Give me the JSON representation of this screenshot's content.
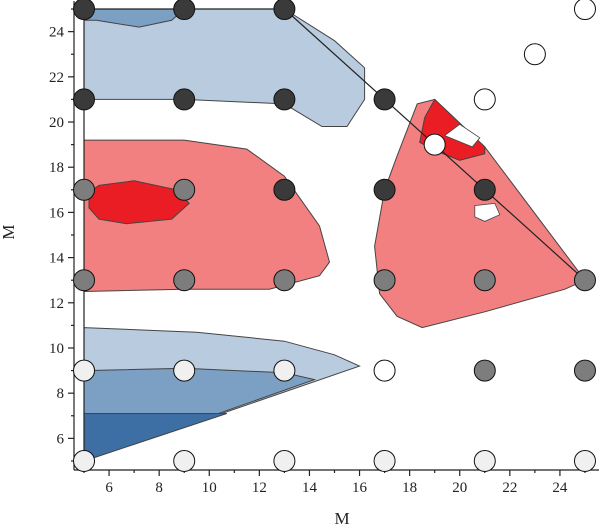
{
  "chart_data": {
    "type": "scatter",
    "title": "",
    "xlabel": "M",
    "ylabel": "M",
    "xlim": [
      4.6,
      25.6
    ],
    "ylim": [
      4.6,
      25.4
    ],
    "xticks": [
      6,
      8,
      10,
      12,
      14,
      16,
      18,
      20,
      22,
      24
    ],
    "yticks": [
      6,
      8,
      10,
      12,
      14,
      16,
      18,
      20,
      22,
      24
    ],
    "grid": false,
    "colors": {
      "light_blue": "#b9cbdf",
      "mid_blue": "#7c9fc4",
      "dark_blue": "#3d6fa4",
      "salmon": "#f28080",
      "red": "#ea1c24",
      "point_dark": "#3a3a3a",
      "point_mid": "#7d7d7d",
      "point_light": "#f0f0f0",
      "point_white": "#ffffff"
    },
    "region_boundary": [
      [
        5,
        5
      ],
      [
        5,
        25
      ],
      [
        13,
        25
      ],
      [
        25,
        13
      ]
    ],
    "contour_regions": [
      {
        "level": "light_blue",
        "points": [
          [
            5,
            25
          ],
          [
            13,
            25
          ],
          [
            15,
            23.6
          ],
          [
            16.2,
            22.4
          ],
          [
            16.2,
            21
          ],
          [
            15.5,
            19.8
          ],
          [
            14.5,
            19.8
          ],
          [
            13,
            20.8
          ],
          [
            9,
            21
          ],
          [
            5,
            21
          ]
        ]
      },
      {
        "level": "mid_blue",
        "points": [
          [
            5,
            25
          ],
          [
            9,
            25
          ],
          [
            8.5,
            24.5
          ],
          [
            7.2,
            24.2
          ],
          [
            5.5,
            24.5
          ],
          [
            5,
            24.5
          ]
        ]
      },
      {
        "level": "salmon",
        "points": [
          [
            5,
            19.2
          ],
          [
            9,
            19.2
          ],
          [
            11.5,
            18.8
          ],
          [
            13,
            17.6
          ],
          [
            14.4,
            15.4
          ],
          [
            14.8,
            13.8
          ],
          [
            14.4,
            13.2
          ],
          [
            12.4,
            12.6
          ],
          [
            9,
            12.6
          ],
          [
            5,
            12.5
          ]
        ]
      },
      {
        "level": "red",
        "points": [
          [
            5.2,
            16.9
          ],
          [
            5.6,
            17.2
          ],
          [
            7,
            17.4
          ],
          [
            8.7,
            17
          ],
          [
            9.2,
            16.4
          ],
          [
            8.5,
            15.7
          ],
          [
            6.7,
            15.5
          ],
          [
            5.6,
            15.7
          ],
          [
            5.2,
            16.2
          ]
        ]
      },
      {
        "level": "salmon",
        "points": [
          [
            18.3,
            20.8
          ],
          [
            19,
            21
          ],
          [
            21,
            18.9
          ],
          [
            25,
            13
          ],
          [
            24.2,
            12.6
          ],
          [
            21,
            11.6
          ],
          [
            18.5,
            10.9
          ],
          [
            17.5,
            11.4
          ],
          [
            16.8,
            12.4
          ],
          [
            16.6,
            14.5
          ],
          [
            17,
            17
          ],
          [
            17.5,
            18.5
          ]
        ]
      },
      {
        "level": "red",
        "points": [
          [
            18.6,
            20.2
          ],
          [
            19,
            21
          ],
          [
            21,
            18.9
          ],
          [
            21,
            18.6
          ],
          [
            20,
            18.3
          ],
          [
            19.1,
            18.7
          ],
          [
            18.4,
            19.1
          ]
        ]
      },
      {
        "level": "light_blue",
        "points": [
          [
            5,
            10.9
          ],
          [
            9.5,
            10.7
          ],
          [
            13,
            10.3
          ],
          [
            15,
            9.7
          ],
          [
            16,
            9.2
          ],
          [
            5,
            5
          ]
        ]
      },
      {
        "level": "mid_blue",
        "points": [
          [
            5,
            9
          ],
          [
            9,
            9.1
          ],
          [
            13,
            8.9
          ],
          [
            14.2,
            8.6
          ],
          [
            5,
            5
          ]
        ]
      },
      {
        "level": "dark_blue",
        "points": [
          [
            5,
            7.1
          ],
          [
            10.7,
            7.1
          ],
          [
            5,
            5
          ]
        ]
      }
    ],
    "white_holes": [
      {
        "points": [
          [
            19.4,
            19.4
          ],
          [
            20,
            19.9
          ],
          [
            20.8,
            19.3
          ],
          [
            20.5,
            18.9
          ]
        ]
      },
      {
        "points": [
          [
            20.6,
            16.3
          ],
          [
            21.4,
            16.4
          ],
          [
            21.6,
            15.9
          ],
          [
            21,
            15.6
          ],
          [
            20.6,
            15.8
          ]
        ]
      }
    ],
    "series": [
      {
        "color": "point_dark",
        "points": [
          [
            5,
            25
          ],
          [
            9,
            25
          ],
          [
            13,
            25
          ],
          [
            5,
            21
          ],
          [
            9,
            21
          ],
          [
            13,
            21
          ],
          [
            17,
            21
          ],
          [
            13,
            17
          ],
          [
            17,
            17
          ],
          [
            21,
            17
          ]
        ]
      },
      {
        "color": "point_mid",
        "points": [
          [
            5,
            17
          ],
          [
            9,
            17
          ],
          [
            5,
            13
          ],
          [
            9,
            13
          ],
          [
            13,
            13
          ],
          [
            17,
            13
          ],
          [
            21,
            13
          ],
          [
            25,
            13
          ],
          [
            21,
            9
          ],
          [
            25,
            9
          ]
        ]
      },
      {
        "color": "point_light",
        "points": [
          [
            5,
            9
          ],
          [
            9,
            9
          ],
          [
            13,
            9
          ],
          [
            5,
            5
          ],
          [
            9,
            5
          ],
          [
            13,
            5
          ],
          [
            17,
            5
          ],
          [
            21,
            5
          ],
          [
            25,
            5
          ]
        ]
      },
      {
        "color": "point_white",
        "points": [
          [
            25,
            25
          ],
          [
            23,
            23
          ],
          [
            21,
            21
          ],
          [
            19,
            19
          ],
          [
            17,
            9
          ]
        ]
      }
    ]
  }
}
